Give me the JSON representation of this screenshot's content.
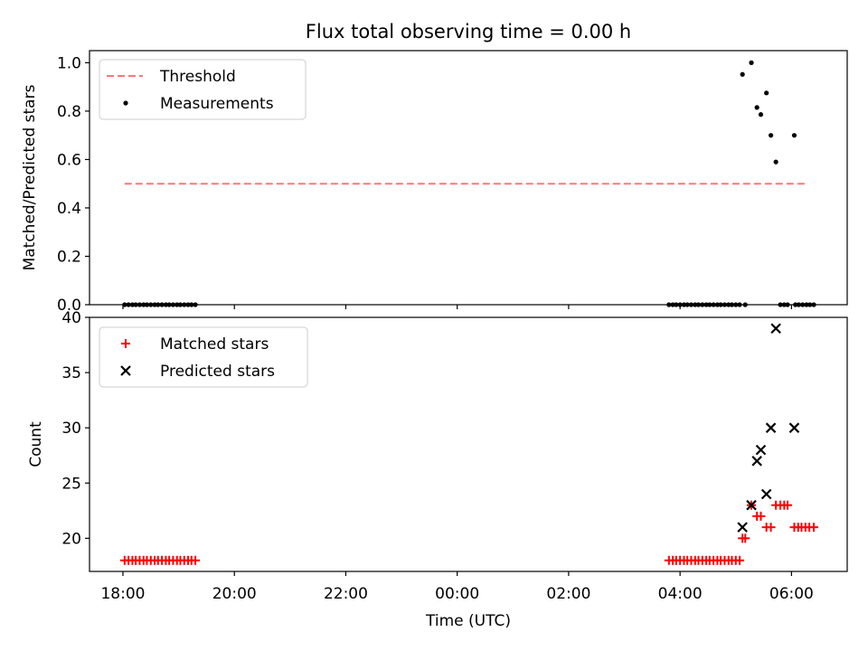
{
  "title": "Flux total observing time = 0.00 h",
  "chart_data": [
    {
      "type": "scatter",
      "panel": "top",
      "ylabel": "Matched/Predicted stars",
      "ylim": [
        0.0,
        1.05
      ],
      "yticks": [
        "0.0",
        "0.2",
        "0.4",
        "0.6",
        "0.8",
        "1.0"
      ],
      "ytick_values": [
        0.0,
        0.2,
        0.4,
        0.6,
        0.8,
        1.0
      ],
      "legend_position": "upper-left",
      "threshold": {
        "name": "Threshold",
        "value": 0.5,
        "x_start": 18.03,
        "x_end": 30.3,
        "color": "#ff7777"
      },
      "series": [
        {
          "name": "Measurements",
          "color": "#000000",
          "x": [
            18.03,
            18.1,
            18.17,
            18.23,
            18.3,
            18.37,
            18.43,
            18.5,
            18.57,
            18.63,
            18.7,
            18.77,
            18.83,
            18.9,
            18.97,
            19.03,
            19.1,
            19.17,
            19.23,
            19.3,
            27.8,
            27.87,
            27.93,
            28.0,
            28.07,
            28.13,
            28.2,
            28.27,
            28.33,
            28.4,
            28.47,
            28.53,
            28.6,
            28.67,
            28.73,
            28.8,
            28.87,
            28.93,
            29.0,
            29.07,
            29.17,
            29.12,
            29.28,
            29.38,
            29.45,
            29.55,
            29.63,
            29.72,
            30.05,
            29.8,
            29.87,
            29.93,
            30.07,
            30.13,
            30.2,
            30.27,
            30.33,
            30.4
          ],
          "y": [
            0,
            0,
            0,
            0,
            0,
            0,
            0,
            0,
            0,
            0,
            0,
            0,
            0,
            0,
            0,
            0,
            0,
            0,
            0,
            0,
            0,
            0,
            0,
            0,
            0,
            0,
            0,
            0,
            0,
            0,
            0,
            0,
            0,
            0,
            0,
            0,
            0,
            0,
            0,
            0,
            0,
            0.952,
            1.0,
            0.815,
            0.786,
            0.875,
            0.7,
            0.59,
            0.7,
            0,
            0,
            0,
            0,
            0,
            0,
            0,
            0,
            0
          ]
        }
      ]
    },
    {
      "type": "scatter",
      "panel": "bottom",
      "xlabel": "Time (UTC)",
      "ylabel": "Count",
      "ylim": [
        17,
        40
      ],
      "yticks": [
        "20",
        "25",
        "30",
        "35",
        "40"
      ],
      "ytick_values": [
        20,
        25,
        30,
        35,
        40
      ],
      "xlim": [
        17.4,
        31.0
      ],
      "xticks": [
        "18:00",
        "20:00",
        "22:00",
        "00:00",
        "02:00",
        "04:00",
        "06:00"
      ],
      "xtick_values": [
        18,
        20,
        22,
        24,
        26,
        28,
        30
      ],
      "legend_position": "upper-left",
      "series": [
        {
          "name": "Matched stars",
          "marker": "plus",
          "color": "#ff0000",
          "x": [
            18.03,
            18.1,
            18.17,
            18.23,
            18.3,
            18.37,
            18.43,
            18.5,
            18.57,
            18.63,
            18.7,
            18.77,
            18.83,
            18.9,
            18.97,
            19.03,
            19.1,
            19.17,
            19.23,
            19.3,
            27.8,
            27.87,
            27.93,
            28.0,
            28.07,
            28.13,
            28.2,
            28.27,
            28.33,
            28.4,
            28.47,
            28.53,
            28.6,
            28.67,
            28.73,
            28.8,
            28.87,
            28.93,
            29.0,
            29.07,
            29.12,
            29.17,
            29.28,
            29.38,
            29.45,
            29.55,
            29.63,
            29.72,
            29.8,
            29.87,
            29.93,
            30.05,
            30.12,
            30.18,
            30.25,
            30.32,
            30.4
          ],
          "y": [
            18,
            18,
            18,
            18,
            18,
            18,
            18,
            18,
            18,
            18,
            18,
            18,
            18,
            18,
            18,
            18,
            18,
            18,
            18,
            18,
            18,
            18,
            18,
            18,
            18,
            18,
            18,
            18,
            18,
            18,
            18,
            18,
            18,
            18,
            18,
            18,
            18,
            18,
            18,
            18,
            20,
            20,
            23,
            22,
            22,
            21,
            21,
            23,
            23,
            23,
            23,
            21,
            21,
            21,
            21,
            21,
            21
          ]
        },
        {
          "name": "Predicted stars",
          "marker": "x",
          "color": "#000000",
          "x": [
            29.12,
            29.28,
            29.38,
            29.45,
            29.55,
            29.63,
            29.72,
            30.05
          ],
          "y": [
            21,
            23,
            27,
            28,
            24,
            30,
            39,
            30
          ]
        }
      ]
    }
  ]
}
